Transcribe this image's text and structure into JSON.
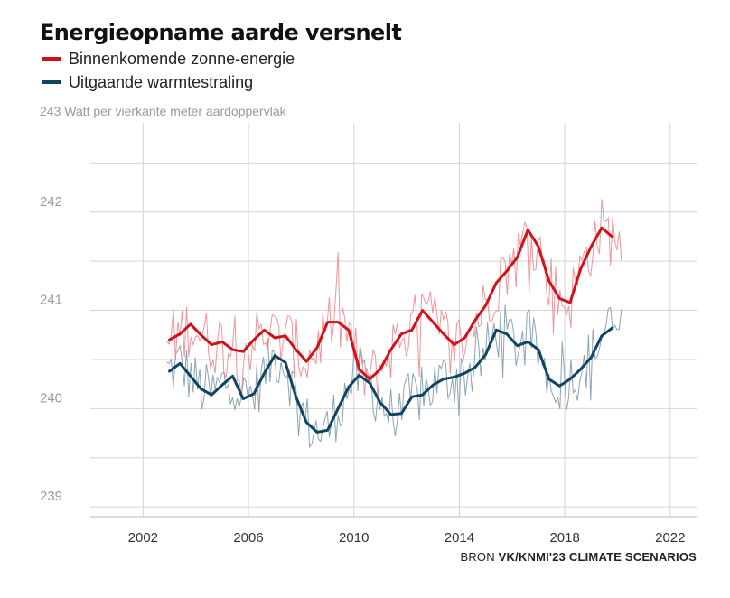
{
  "header": {
    "title": "Energieopname aarde versnelt"
  },
  "source": {
    "prefix": "BRON",
    "name": "VK/KNMI'23 CLIMATE SCENARIOS"
  },
  "colors": {
    "incoming": "#d0121b",
    "incoming_raw": "#ee8a8f",
    "outgoing": "#0f4560",
    "outgoing_raw": "#7f9aab",
    "grid": "#d4d4d4",
    "tick_text": "#9a9a9a",
    "axis_text": "#333333"
  },
  "chart_data": {
    "type": "line",
    "title": "Energieopname aarde versnelt",
    "ylabel": "243 Watt per vierkante meter aardoppervlak",
    "xlabel": "",
    "xlim": [
      2000,
      2023
    ],
    "ylim": [
      238.9,
      243
    ],
    "x_ticks": [
      "2002",
      "2006",
      "2010",
      "2014",
      "2018",
      "2022"
    ],
    "y_ticks": [
      "239",
      "240",
      "241",
      "242"
    ],
    "legend_position": "top-left",
    "series": [
      {
        "name": "Binnenkomende zonne-energie",
        "x": [
          2003.0,
          2003.4,
          2003.8,
          2004.2,
          2004.6,
          2005.0,
          2005.4,
          2005.8,
          2006.2,
          2006.6,
          2007.0,
          2007.4,
          2007.8,
          2008.2,
          2008.6,
          2009.0,
          2009.4,
          2009.8,
          2010.2,
          2010.6,
          2011.0,
          2011.4,
          2011.8,
          2012.2,
          2012.6,
          2013.0,
          2013.4,
          2013.8,
          2014.2,
          2014.6,
          2015.0,
          2015.4,
          2015.8,
          2016.2,
          2016.6,
          2017.0,
          2017.4,
          2017.8,
          2018.2,
          2018.6,
          2019.0,
          2019.4,
          2019.8
        ],
        "values": [
          240.7,
          240.76,
          240.86,
          240.75,
          240.65,
          240.68,
          240.6,
          240.58,
          240.7,
          240.8,
          240.72,
          240.74,
          240.6,
          240.48,
          240.62,
          240.88,
          240.88,
          240.8,
          240.4,
          240.3,
          240.4,
          240.6,
          240.76,
          240.8,
          241.0,
          240.88,
          240.76,
          240.65,
          240.72,
          240.9,
          241.05,
          241.28,
          241.4,
          241.54,
          241.82,
          241.65,
          241.3,
          241.12,
          241.08,
          241.42,
          241.65,
          241.84,
          241.75
        ]
      },
      {
        "name": "Uitgaande warmtestraling",
        "x": [
          2003.0,
          2003.4,
          2003.8,
          2004.2,
          2004.6,
          2005.0,
          2005.4,
          2005.8,
          2006.2,
          2006.6,
          2007.0,
          2007.4,
          2007.8,
          2008.2,
          2008.6,
          2009.0,
          2009.4,
          2009.8,
          2010.2,
          2010.6,
          2011.0,
          2011.4,
          2011.8,
          2012.2,
          2012.6,
          2013.0,
          2013.4,
          2013.8,
          2014.2,
          2014.6,
          2015.0,
          2015.4,
          2015.8,
          2016.2,
          2016.6,
          2017.0,
          2017.4,
          2017.8,
          2018.2,
          2018.6,
          2019.0,
          2019.4,
          2019.8
        ],
        "values": [
          240.38,
          240.46,
          240.33,
          240.2,
          240.14,
          240.24,
          240.33,
          240.1,
          240.15,
          240.36,
          240.54,
          240.47,
          240.12,
          239.86,
          239.76,
          239.78,
          240.0,
          240.22,
          240.34,
          240.26,
          240.06,
          239.94,
          239.95,
          240.12,
          240.14,
          240.24,
          240.3,
          240.32,
          240.36,
          240.42,
          240.55,
          240.8,
          240.76,
          240.64,
          240.68,
          240.6,
          240.3,
          240.23,
          240.3,
          240.4,
          240.52,
          240.74,
          240.82
        ]
      }
    ]
  }
}
